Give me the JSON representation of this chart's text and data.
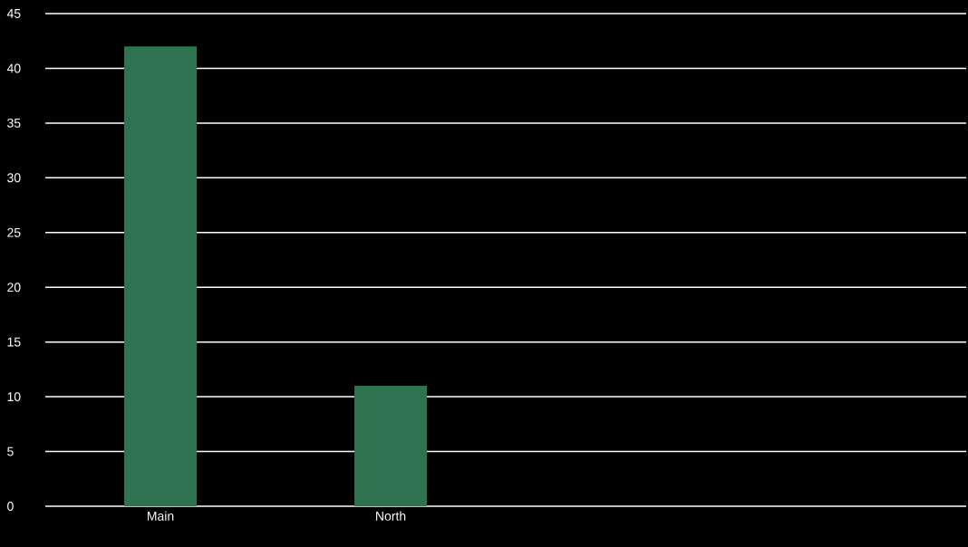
{
  "chart_data": {
    "type": "bar",
    "categories": [
      "Main",
      "North",
      null,
      null
    ],
    "values": [
      42,
      11,
      null,
      null
    ],
    "color": "#2e7350",
    "ylim": [
      0,
      45
    ],
    "yticks": [
      0,
      5,
      10,
      15,
      20,
      25,
      30,
      35,
      40,
      45
    ],
    "grid": "y"
  }
}
